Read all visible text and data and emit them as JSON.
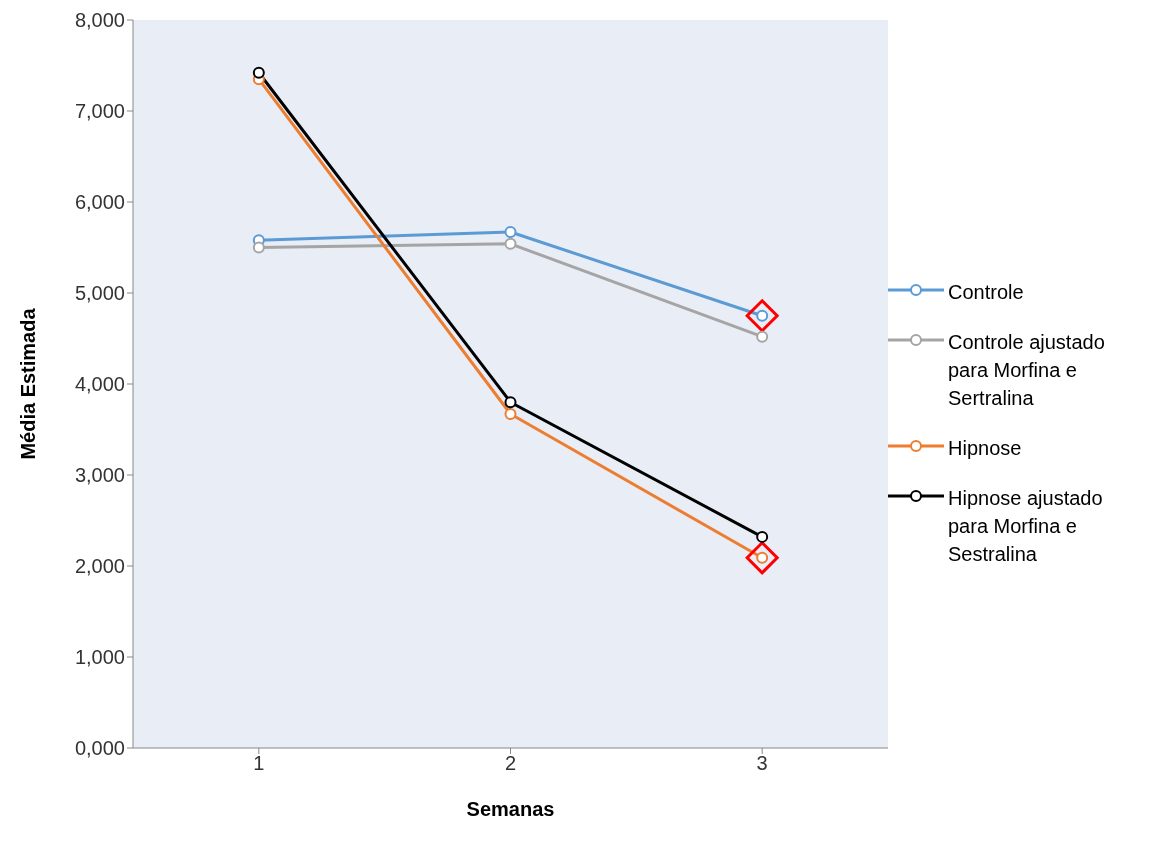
{
  "chart_data": {
    "type": "line",
    "xlabel": "Semanas",
    "ylabel": "Média Estimada",
    "categories": [
      "1",
      "2",
      "3"
    ],
    "ylim": [
      0,
      8000
    ],
    "yticks": [
      {
        "value": 0,
        "label": "0,000"
      },
      {
        "value": 1000,
        "label": "1,000"
      },
      {
        "value": 2000,
        "label": "2,000"
      },
      {
        "value": 3000,
        "label": "3,000"
      },
      {
        "value": 4000,
        "label": "4,000"
      },
      {
        "value": 5000,
        "label": "5,000"
      },
      {
        "value": 6000,
        "label": "6,000"
      },
      {
        "value": 7000,
        "label": "7,000"
      },
      {
        "value": 8000,
        "label": "8,000"
      }
    ],
    "grid": false,
    "legend": "right",
    "marker": "circle",
    "line_style": "solid",
    "series": [
      {
        "name": "Controle",
        "color": "#5b9bd5",
        "values": [
          5580,
          5670,
          4750
        ]
      },
      {
        "name": "Controle ajustado para Morfina e Sertralina",
        "color": "#a5a5a5",
        "values": [
          5500,
          5540,
          4520
        ]
      },
      {
        "name": "Hipnose",
        "color": "#ed7d31",
        "values": [
          7350,
          3670,
          2090
        ]
      },
      {
        "name": "Hipnose ajustado para Morfina e Sestralina",
        "color": "#000000",
        "values": [
          7420,
          3800,
          2320
        ]
      },
      {
        "type": "scatter",
        "marker": "diamond",
        "color": "#ff0000",
        "x": [
          "3",
          "3"
        ],
        "values": [
          4750,
          2090
        ]
      }
    ]
  }
}
